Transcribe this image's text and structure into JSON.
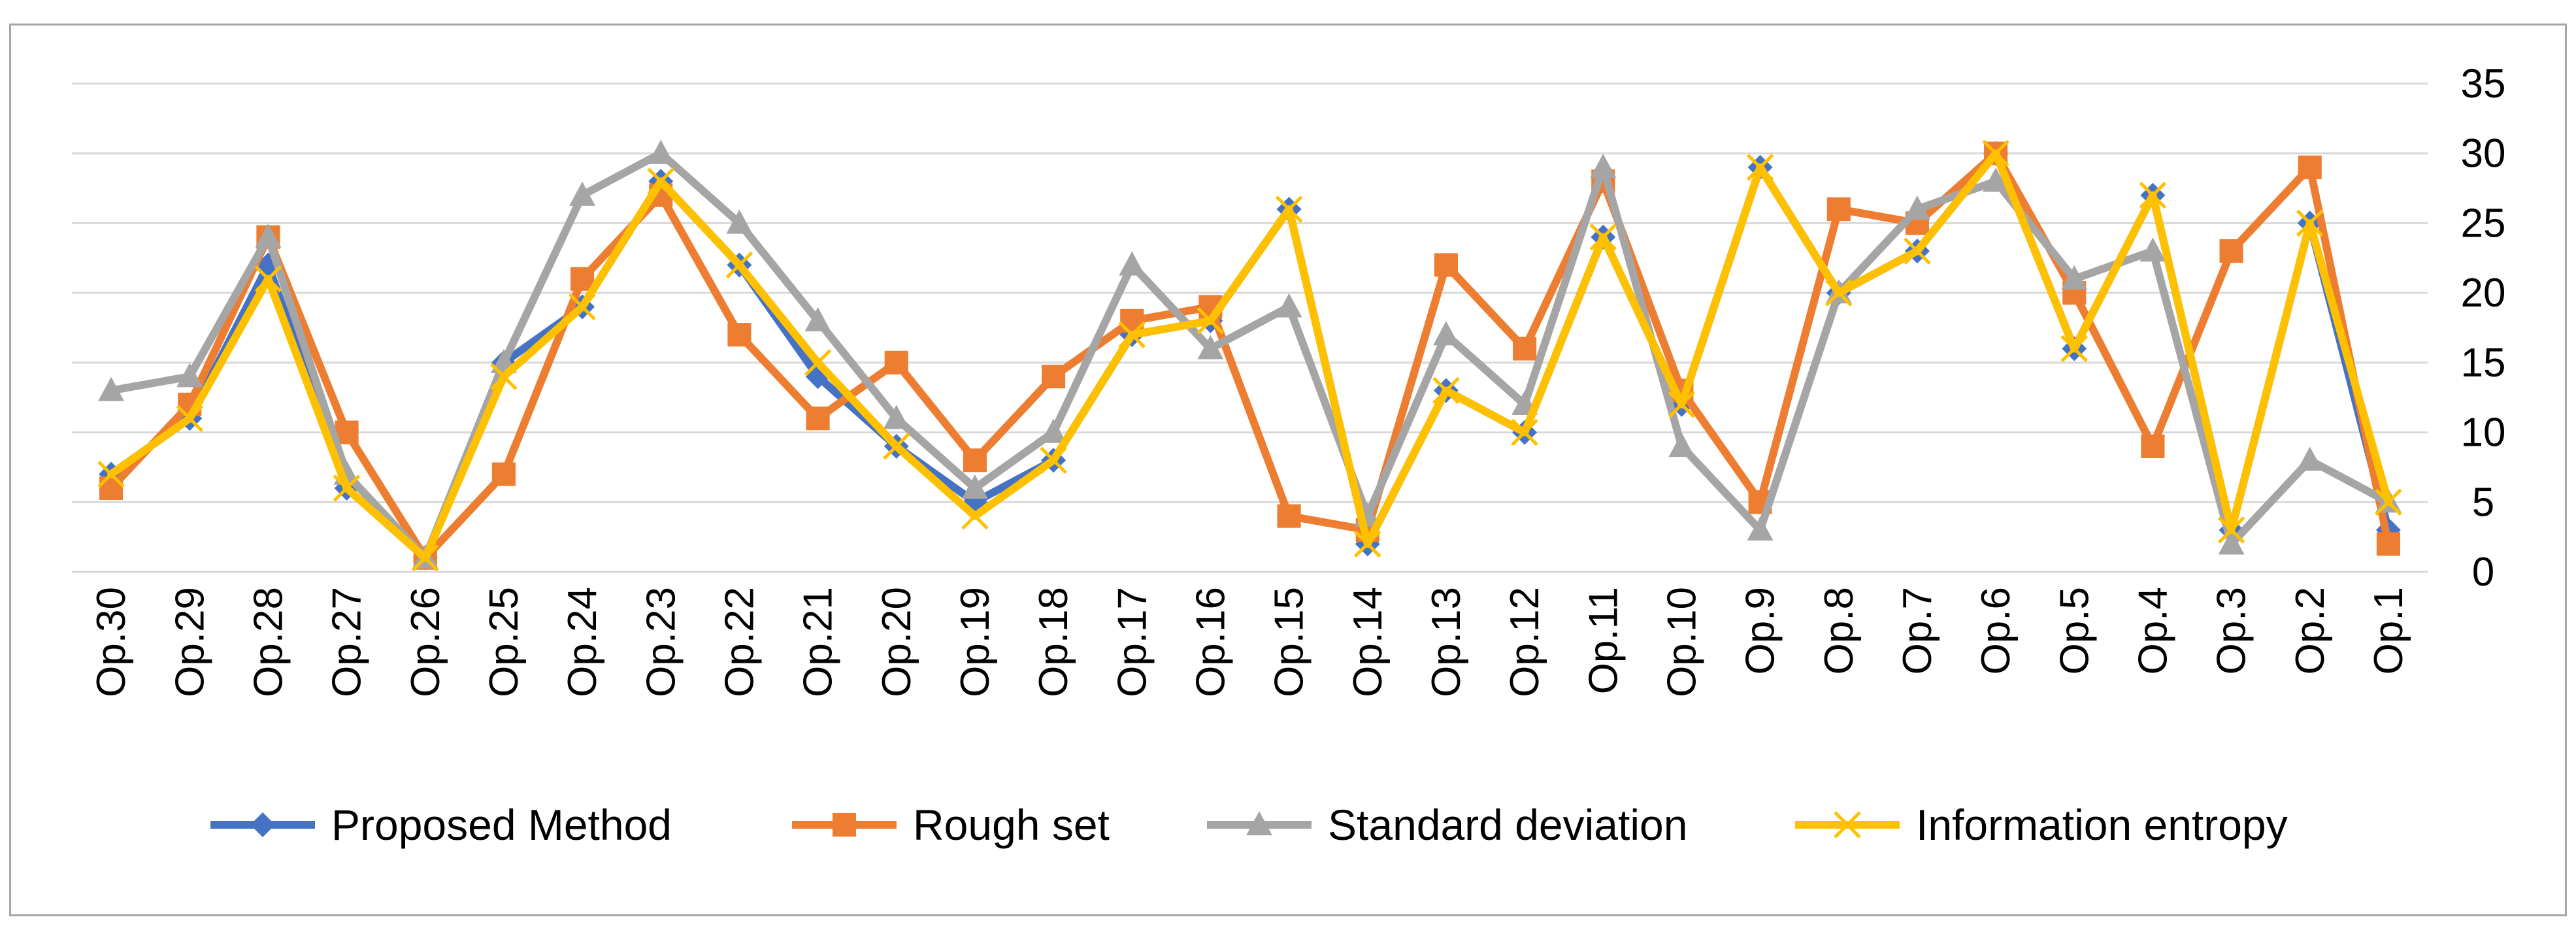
{
  "chart_data": {
    "type": "line",
    "title": "",
    "xlabel": "",
    "ylabel": "",
    "ylim": [
      0,
      35
    ],
    "yticks": [
      0,
      5,
      10,
      15,
      20,
      25,
      30,
      35
    ],
    "grid": true,
    "legend_position": "bottom",
    "categories": [
      "Op.30",
      "Op.29",
      "Op.28",
      "Op.27",
      "Op.26",
      "Op.25",
      "Op.24",
      "Op.23",
      "Op.22",
      "Op.21",
      "Op.20",
      "Op.19",
      "Op.18",
      "Op.17",
      "Op.16",
      "Op.15",
      "Op.14",
      "Op.13",
      "Op.12",
      "Op.11",
      "Op.10",
      "Op.9",
      "Op.8",
      "Op.7",
      "Op.6",
      "Op.5",
      "Op.4",
      "Op.3",
      "Op.2",
      "Op.1"
    ],
    "series": [
      {
        "name": "Proposed Method",
        "color": "#4472c4",
        "marker": "diamond",
        "values": [
          7,
          11,
          22,
          6,
          1,
          15,
          19,
          28,
          22,
          14,
          9,
          5,
          8,
          17,
          18,
          26,
          2,
          13,
          10,
          24,
          12,
          29,
          20,
          23,
          30,
          16,
          27,
          3,
          25,
          3
        ]
      },
      {
        "name": "Rough set",
        "color": "#ed7d31",
        "marker": "square",
        "values": [
          6,
          12,
          24,
          10,
          1,
          7,
          21,
          27,
          17,
          11,
          15,
          8,
          14,
          18,
          19,
          4,
          3,
          22,
          16,
          28,
          13,
          5,
          26,
          25,
          30,
          20,
          9,
          23,
          29,
          2
        ]
      },
      {
        "name": "Standard deviation",
        "color": "#a5a5a5",
        "marker": "triangle",
        "values": [
          13,
          14,
          24,
          7,
          1,
          15,
          27,
          30,
          25,
          18,
          11,
          6,
          10,
          22,
          16,
          19,
          4,
          17,
          12,
          29,
          9,
          3,
          20,
          26,
          28,
          21,
          23,
          2,
          8,
          5
        ]
      },
      {
        "name": "Information entropy",
        "color": "#ffc000",
        "marker": "x",
        "values": [
          7,
          11,
          21,
          6,
          1,
          14,
          19,
          28,
          22,
          15,
          9,
          4,
          8,
          17,
          18,
          26,
          2,
          13,
          10,
          24,
          12,
          29,
          20,
          23,
          30,
          16,
          27,
          3,
          25,
          5
        ]
      }
    ]
  }
}
